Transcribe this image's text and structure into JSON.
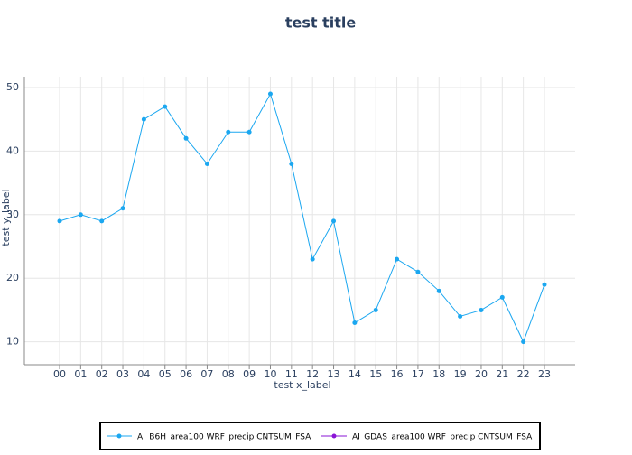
{
  "chart_data": {
    "type": "line",
    "title": "test title",
    "x_label": "test x_label",
    "y_label": "test y_label",
    "categories": [
      "00",
      "01",
      "02",
      "03",
      "04",
      "05",
      "06",
      "07",
      "08",
      "09",
      "10",
      "11",
      "12",
      "13",
      "14",
      "15",
      "16",
      "17",
      "18",
      "19",
      "20",
      "21",
      "22",
      "23"
    ],
    "series": [
      {
        "name": "AI_B6H_area100 WRF_precip CNTSUM_FSA",
        "color": "#1ba7f0",
        "values": [
          29,
          30,
          29,
          31,
          45,
          47,
          42,
          38,
          43,
          43,
          49,
          38,
          23,
          29,
          13,
          15,
          23,
          21,
          18,
          14,
          15,
          17,
          10,
          19
        ]
      },
      {
        "name": "AI_GDAS_area100 WRF_precip CNTSUM_FSA",
        "color": "#8a14d6",
        "values": [
          null,
          null,
          null,
          null,
          null,
          null,
          null,
          null,
          null,
          null,
          null,
          null,
          null,
          null,
          null,
          null,
          null,
          null,
          null,
          null,
          null,
          null,
          null,
          null
        ]
      }
    ],
    "ylim": [
      6.4,
      51.7
    ],
    "yticks": [
      10,
      20,
      30,
      40,
      50
    ],
    "grid": true,
    "legend": "bottom"
  }
}
